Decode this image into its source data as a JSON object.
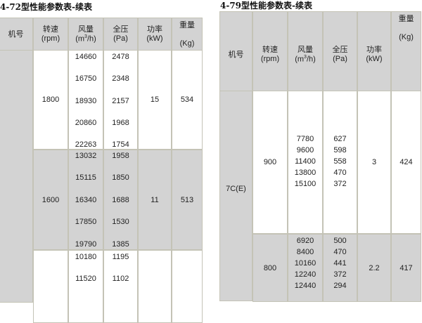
{
  "left_table": {
    "title": "4-72型性能参数表-续表",
    "headers": {
      "model": "机号",
      "speed": [
        "转速",
        "(rpm)"
      ],
      "flow": [
        "风量",
        "(m",
        "3",
        "/h)"
      ],
      "pressure": [
        "全压",
        "(Pa)"
      ],
      "power": [
        "功率",
        "(kW)"
      ],
      "weight": [
        "重量",
        "(Kg)"
      ]
    },
    "rows": [
      {
        "speed": "1800",
        "flow": [
          "14660",
          "16750",
          "18930",
          "20860",
          "22263"
        ],
        "pressure": [
          "2478",
          "2348",
          "2157",
          "1968",
          "1754"
        ],
        "power": "15",
        "weight": "534"
      },
      {
        "speed": "1600",
        "flow": [
          "13032",
          "15115",
          "16340",
          "17850",
          "19790"
        ],
        "pressure": [
          "1958",
          "1850",
          "1688",
          "1530",
          "1385"
        ],
        "power": "11",
        "weight": "513"
      },
      {
        "speed": "",
        "flow": [
          "10180",
          "11520"
        ],
        "pressure": [
          "1195",
          "1102"
        ],
        "power": "",
        "weight": ""
      }
    ]
  },
  "right_table": {
    "title": "4-79型性能参数表-续表",
    "headers": {
      "model": "机号",
      "speed": [
        "转速",
        "(rpm)"
      ],
      "flow": [
        "风量",
        "(m",
        "3",
        "/h)"
      ],
      "pressure": [
        "全压",
        "(Pa)"
      ],
      "power": [
        "功率",
        "(kW)"
      ],
      "weight": [
        "重量",
        "(Kg)"
      ]
    },
    "model": "7C(E)",
    "rows": [
      {
        "speed": "900",
        "flow": [
          "7780",
          "9600",
          "11400",
          "13800",
          "15100"
        ],
        "pressure": [
          "627",
          "598",
          "558",
          "470",
          "372"
        ],
        "power": "3",
        "weight": "424"
      },
      {
        "speed": "800",
        "flow": [
          "6920",
          "8400",
          "10160",
          "12240",
          "12440"
        ],
        "pressure": [
          "500",
          "470",
          "441",
          "372",
          "294"
        ],
        "power": "2.2",
        "weight": "417"
      }
    ]
  }
}
